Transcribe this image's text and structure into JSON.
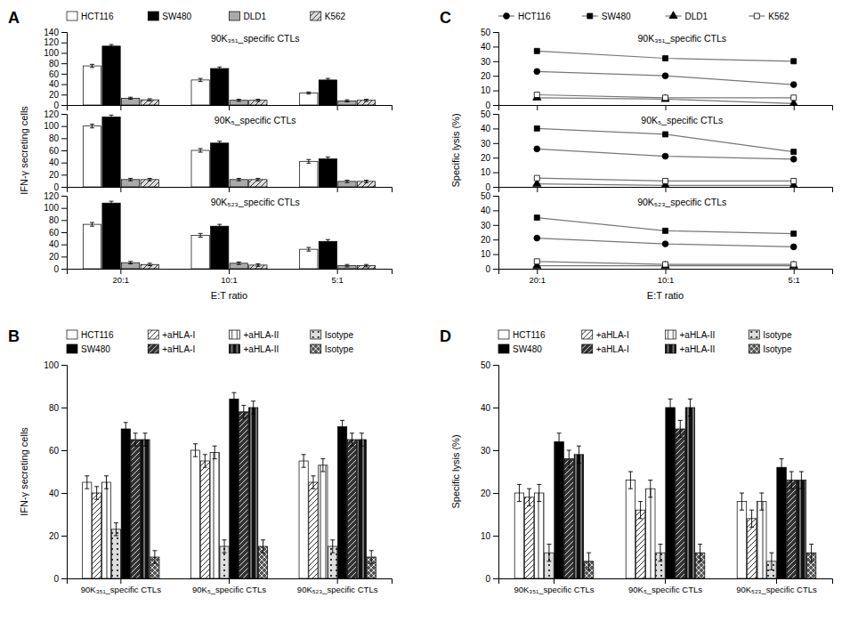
{
  "chart_data": [
    {
      "type": "bar",
      "title": "A",
      "legend": "top",
      "annotations": [
        "90K₃₅₁_specific CTLs"
      ],
      "categories": [
        null,
        null,
        null
      ],
      "ylim": [
        0,
        140
      ],
      "yticks": [
        0,
        20,
        40,
        60,
        80,
        100,
        120,
        140
      ],
      "series": [
        {
          "name": "HCT116",
          "color": "#ffffff",
          "values": [
            75,
            48,
            23
          ],
          "errors": [
            3,
            3,
            2
          ]
        },
        {
          "name": "SW480",
          "color": "#000000",
          "values": [
            113,
            70,
            48
          ],
          "errors": [
            3,
            3,
            3
          ]
        },
        {
          "name": "DLD1",
          "color": "#aaaaaa",
          "values": [
            13,
            9,
            8
          ],
          "errors": [
            2,
            2,
            2
          ]
        },
        {
          "name": "K562",
          "color": "#dddddd",
          "values": [
            10,
            9,
            9
          ],
          "errors": [
            2,
            2,
            2
          ]
        }
      ]
    },
    {
      "type": "bar",
      "ylabel": "IFN-γ secreting cells",
      "annotations": [
        "90K₅_specific CTLs"
      ],
      "categories": [
        null,
        null,
        null
      ],
      "ylim": [
        0,
        120
      ],
      "yticks": [
        0,
        20,
        40,
        60,
        80,
        100,
        120
      ],
      "series": [
        {
          "color": "#ffffff",
          "values": [
            100,
            60,
            42
          ],
          "errors": [
            3,
            3,
            3
          ]
        },
        {
          "color": "#000000",
          "values": [
            115,
            72,
            46
          ],
          "errors": [
            3,
            3,
            3
          ]
        },
        {
          "color": "#aaaaaa",
          "values": [
            12,
            12,
            9
          ],
          "errors": [
            2,
            2,
            2
          ]
        },
        {
          "color": "#dddddd",
          "values": [
            12,
            12,
            9
          ],
          "errors": [
            2,
            2,
            2
          ]
        }
      ]
    },
    {
      "type": "bar",
      "xlabel": "E:T ratio",
      "annotations": [
        "90K₅₂₃_specific CTLs"
      ],
      "categories": [
        "20:1",
        "10:1",
        "5:1"
      ],
      "ylim": [
        0,
        120
      ],
      "yticks": [
        0,
        20,
        40,
        60,
        80,
        100,
        120
      ],
      "series": [
        {
          "color": "#ffffff",
          "values": [
            73,
            55,
            32
          ],
          "errors": [
            3,
            3,
            3
          ]
        },
        {
          "color": "#000000",
          "values": [
            108,
            70,
            45
          ],
          "errors": [
            3,
            3,
            3
          ]
        },
        {
          "color": "#aaaaaa",
          "values": [
            10,
            9,
            5
          ],
          "errors": [
            2,
            2,
            2
          ]
        },
        {
          "color": "#dddddd",
          "values": [
            7,
            6,
            5
          ],
          "errors": [
            2,
            2,
            2
          ]
        }
      ]
    },
    {
      "type": "line",
      "title": "C",
      "legend": "top",
      "color": "#777777",
      "annotations": [
        "90K₃₅₁_specific CTLs"
      ],
      "categories": [
        null,
        null,
        null
      ],
      "ylim": [
        0,
        50
      ],
      "yticks": [
        0,
        10,
        20,
        30,
        40,
        50
      ],
      "series": [
        {
          "name": "HCT116",
          "color": "#000000",
          "marker": "circle",
          "values": [
            23,
            20,
            14
          ]
        },
        {
          "name": "SW480",
          "color": "#000000",
          "marker": "square",
          "values": [
            37,
            32,
            30
          ]
        },
        {
          "name": "DLD1",
          "color": "#000000",
          "marker": "triangle",
          "values": [
            5,
            4,
            1
          ]
        },
        {
          "name": "K562",
          "color": "#ffffff",
          "marker": "square",
          "values": [
            7,
            5,
            5
          ]
        }
      ]
    },
    {
      "type": "line",
      "color": "#777777",
      "ylabel": "Specific lysis (%)",
      "annotations": [
        "90K₅_specific CTLs"
      ],
      "categories": [
        null,
        null,
        null
      ],
      "ylim": [
        0,
        50
      ],
      "yticks": [
        0,
        10,
        20,
        30,
        40,
        50
      ],
      "series": [
        {
          "color": "#000000",
          "marker": "circle",
          "values": [
            26,
            21,
            19
          ]
        },
        {
          "color": "#000000",
          "marker": "square",
          "values": [
            40,
            36,
            24
          ]
        },
        {
          "color": "#000000",
          "marker": "triangle",
          "values": [
            2,
            1,
            1
          ]
        },
        {
          "color": "#ffffff",
          "marker": "square",
          "values": [
            6,
            4,
            4
          ]
        }
      ]
    },
    {
      "type": "line",
      "color": "#777777",
      "xlabel": "E:T ratio",
      "annotations": [
        "90K₅₂₃_specific CTLs"
      ],
      "categories": [
        "20:1",
        "10:1",
        "5:1"
      ],
      "ylim": [
        0,
        50
      ],
      "yticks": [
        0,
        10,
        20,
        30,
        40,
        50
      ],
      "series": [
        {
          "color": "#000000",
          "marker": "circle",
          "values": [
            21,
            17,
            15
          ]
        },
        {
          "color": "#000000",
          "marker": "square",
          "values": [
            35,
            26,
            24
          ]
        },
        {
          "color": "#000000",
          "marker": "triangle",
          "values": [
            2,
            2,
            2
          ]
        },
        {
          "color": "#ffffff",
          "marker": "square",
          "values": [
            5,
            3,
            3
          ]
        }
      ]
    },
    {
      "type": "bar",
      "title": "B",
      "legend": "top",
      "ylabel": "IFN-γ secreting cells",
      "categories": [
        "90K₃₅₁_specific CTLs",
        "90K₅_specific CTLs",
        "90K₅₂₃_specific CTLs"
      ],
      "ylim": [
        0,
        100
      ],
      "yticks": [
        0,
        20,
        40,
        60,
        80,
        100
      ],
      "series": [
        {
          "name": "HCT116",
          "color": "#ffffff",
          "values": [
            45,
            60,
            55
          ],
          "errors": [
            3,
            3,
            3
          ]
        },
        {
          "name": "+aHLA-I",
          "color": "#ffffff",
          "values": [
            40,
            55,
            45
          ],
          "errors": [
            3,
            3,
            3
          ]
        },
        {
          "name": "+aHLA-II",
          "color": "#ffffff",
          "values": [
            45,
            59,
            53
          ],
          "errors": [
            3,
            3,
            3
          ]
        },
        {
          "name": "Isotype",
          "color": "#dddddd",
          "values": [
            23,
            15,
            15
          ],
          "errors": [
            3,
            3,
            3
          ]
        },
        {
          "name": "SW480",
          "color": "#000000",
          "values": [
            70,
            84,
            71
          ],
          "errors": [
            3,
            3,
            3
          ]
        },
        {
          "name": "+aHLA-I",
          "color": "#333333",
          "values": [
            65,
            78,
            65
          ],
          "errors": [
            3,
            3,
            3
          ]
        },
        {
          "name": "+aHLA-II",
          "color": "#111111",
          "values": [
            65,
            80,
            65
          ],
          "errors": [
            3,
            3,
            3
          ]
        },
        {
          "name": "Isotype",
          "color": "#555555",
          "values": [
            10,
            15,
            10
          ],
          "errors": [
            3,
            3,
            3
          ]
        }
      ]
    },
    {
      "type": "bar",
      "title": "D",
      "legend": "top",
      "ylabel": "Specific lysis (%)",
      "categories": [
        "90K₃₅₁_specific CTLs",
        "90K₅_specific CTLs",
        "90K₅₂₃_specific CTLs"
      ],
      "ylim": [
        0,
        50
      ],
      "yticks": [
        0,
        10,
        20,
        30,
        40,
        50
      ],
      "series": [
        {
          "name": "HCT116",
          "color": "#ffffff",
          "values": [
            20,
            23,
            18
          ],
          "errors": [
            2,
            2,
            2
          ]
        },
        {
          "name": "+aHLA-I",
          "color": "#ffffff",
          "values": [
            19,
            16,
            14
          ],
          "errors": [
            2,
            2,
            2
          ]
        },
        {
          "name": "+aHLA-II",
          "color": "#ffffff",
          "values": [
            20,
            21,
            18
          ],
          "errors": [
            2,
            2,
            2
          ]
        },
        {
          "name": "Isotype",
          "color": "#dddddd",
          "values": [
            6,
            6,
            4
          ],
          "errors": [
            2,
            2,
            2
          ]
        },
        {
          "name": "SW480",
          "color": "#000000",
          "values": [
            32,
            40,
            26
          ],
          "errors": [
            2,
            2,
            2
          ]
        },
        {
          "name": "+aHLA-I",
          "color": "#333333",
          "values": [
            28,
            35,
            23
          ],
          "errors": [
            2,
            2,
            2
          ]
        },
        {
          "name": "+aHLA-II",
          "color": "#111111",
          "values": [
            29,
            40,
            23
          ],
          "errors": [
            2,
            2,
            2
          ]
        },
        {
          "name": "Isotype",
          "color": "#555555",
          "values": [
            4,
            6,
            6
          ],
          "errors": [
            2,
            2,
            2
          ]
        }
      ]
    }
  ]
}
